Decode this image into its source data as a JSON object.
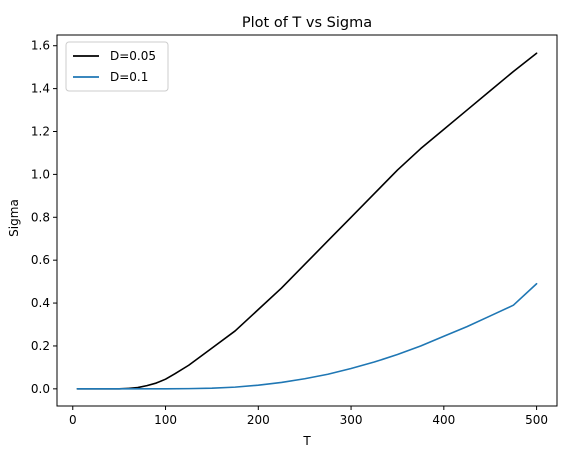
{
  "chart_data": {
    "type": "line",
    "title": "Plot of T vs Sigma",
    "xlabel": "T",
    "ylabel": "Sigma",
    "xlim": [
      -17,
      522
    ],
    "ylim": [
      -0.08,
      1.65
    ],
    "xticks": [
      0,
      100,
      200,
      300,
      400,
      500
    ],
    "yticks": [
      0.0,
      0.2,
      0.4,
      0.6,
      0.8,
      1.0,
      1.2,
      1.4,
      1.6
    ],
    "xtick_labels": [
      "0",
      "100",
      "200",
      "300",
      "400",
      "500"
    ],
    "ytick_labels": [
      "0.0",
      "0.2",
      "0.4",
      "0.6",
      "0.8",
      "1.0",
      "1.2",
      "1.4",
      "1.6"
    ],
    "grid": false,
    "legend_position": "upper-left",
    "series": [
      {
        "name": "D=0.05",
        "color": "#000000",
        "x": [
          5,
          25,
          50,
          60,
          70,
          80,
          90,
          100,
          110,
          125,
          150,
          175,
          200,
          225,
          250,
          275,
          300,
          325,
          350,
          375,
          400,
          425,
          450,
          475,
          500
        ],
        "y": [
          0.0,
          0.0,
          0.0,
          0.002,
          0.006,
          0.015,
          0.027,
          0.045,
          0.07,
          0.11,
          0.19,
          0.27,
          0.37,
          0.47,
          0.58,
          0.69,
          0.8,
          0.91,
          1.02,
          1.12,
          1.21,
          1.3,
          1.39,
          1.48,
          1.565
        ]
      },
      {
        "name": "D=0.1",
        "color": "#1f77b4",
        "x": [
          5,
          50,
          100,
          125,
          150,
          175,
          200,
          225,
          250,
          275,
          300,
          325,
          350,
          375,
          400,
          425,
          450,
          475,
          500
        ],
        "y": [
          0.0,
          0.0,
          0.0,
          0.001,
          0.003,
          0.008,
          0.017,
          0.03,
          0.047,
          0.068,
          0.095,
          0.125,
          0.16,
          0.2,
          0.245,
          0.29,
          0.34,
          0.39,
          0.49
        ]
      }
    ]
  }
}
